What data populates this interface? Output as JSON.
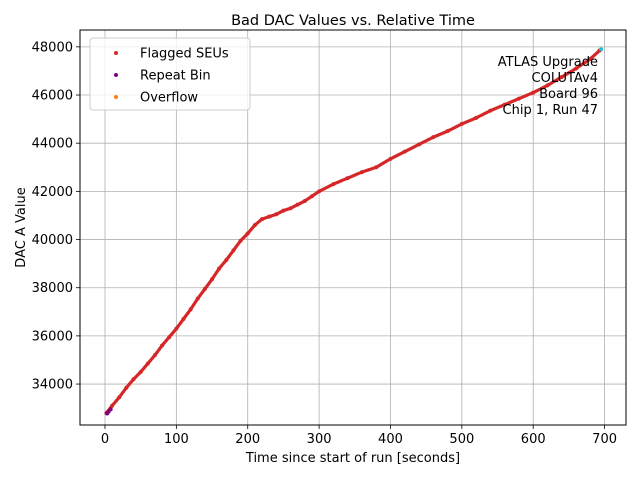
{
  "chart_data": {
    "type": "scatter",
    "title": "Bad DAC Values vs. Relative Time",
    "xlabel": "Time since start of run [seconds]",
    "ylabel": "DAC A Value",
    "xlim": [
      -35,
      730
    ],
    "ylim": [
      32300,
      48700
    ],
    "xticks": [
      0,
      100,
      200,
      300,
      400,
      500,
      600,
      700
    ],
    "yticks": [
      34000,
      36000,
      38000,
      40000,
      42000,
      44000,
      46000,
      48000
    ],
    "grid": true,
    "legend_position": "top-left",
    "annotation": [
      "ATLAS Upgrade",
      "COLUTAv4",
      "Board 96",
      "Chip 1, Run 47"
    ],
    "series": [
      {
        "name": "Flagged SEUs",
        "color": "#d62728",
        "x": [
          2,
          10,
          20,
          30,
          40,
          50,
          60,
          70,
          80,
          90,
          100,
          110,
          120,
          130,
          140,
          150,
          160,
          170,
          180,
          190,
          200,
          210,
          220,
          230,
          240,
          250,
          260,
          270,
          280,
          290,
          300,
          320,
          340,
          360,
          380,
          400,
          420,
          440,
          460,
          480,
          500,
          520,
          540,
          560,
          580,
          600,
          620,
          640,
          660,
          680,
          693
        ],
        "y": [
          32800,
          33100,
          33450,
          33850,
          34200,
          34500,
          34850,
          35200,
          35600,
          35950,
          36300,
          36700,
          37100,
          37550,
          37950,
          38350,
          38800,
          39150,
          39550,
          39950,
          40250,
          40600,
          40850,
          40950,
          41050,
          41200,
          41300,
          41450,
          41600,
          41800,
          42000,
          42300,
          42550,
          42800,
          43000,
          43350,
          43650,
          43950,
          44250,
          44500,
          44800,
          45050,
          45350,
          45600,
          45850,
          46100,
          46400,
          46750,
          47100,
          47500,
          47850
        ]
      },
      {
        "name": "Repeat Bin",
        "color": "#800080",
        "x": [
          3,
          5,
          8
        ],
        "y": [
          32780,
          32850,
          32950
        ]
      },
      {
        "name": "Overflow",
        "color": "#ff7f0e",
        "x": [],
        "y": []
      },
      {
        "name": "",
        "color": "#17becf",
        "x": [
          695
        ],
        "y": [
          47900
        ]
      }
    ]
  }
}
